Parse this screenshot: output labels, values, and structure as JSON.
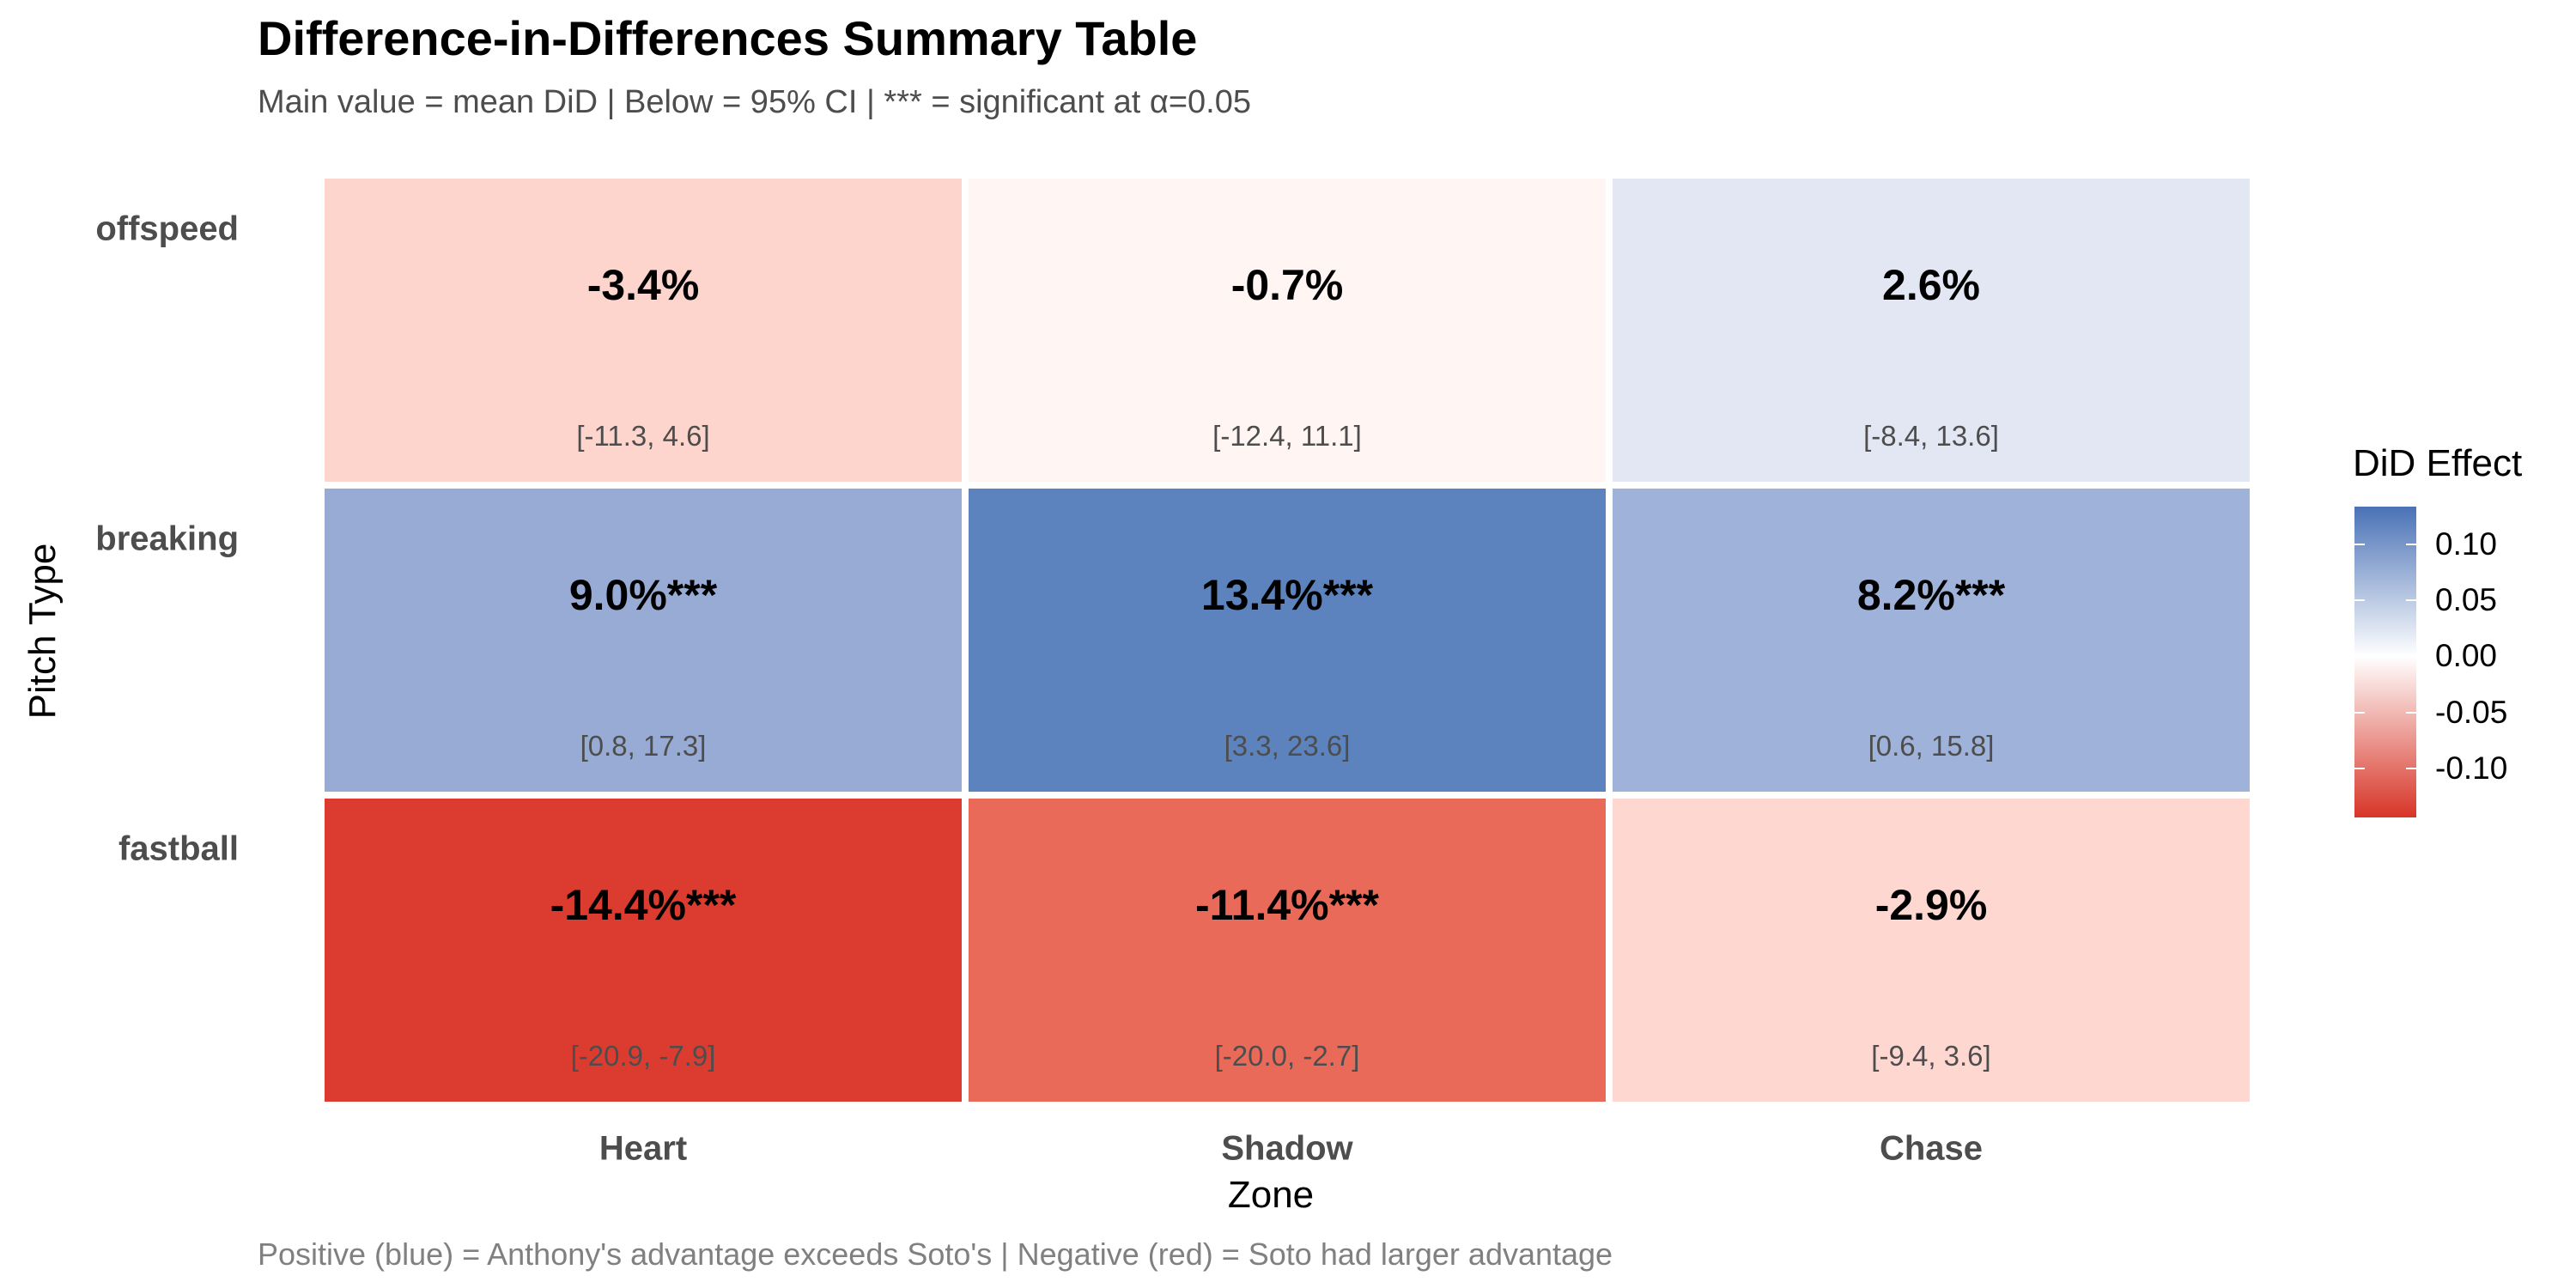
{
  "chart_data": {
    "type": "heatmap",
    "title": "Difference-in-Differences Summary Table",
    "subtitle": "Main value = mean DiD | Below = 95% CI | *** = significant at α=0.05",
    "caption": "Positive (blue) = Anthony's advantage exceeds Soto's | Negative (red) = Soto had larger advantage",
    "xlabel": "Zone",
    "ylabel": "Pitch Type",
    "x_categories": [
      "Heart",
      "Shadow",
      "Chase"
    ],
    "y_categories": [
      "offspeed",
      "breaking",
      "fastball"
    ],
    "legend": {
      "title": "DiD Effect",
      "placement": "right",
      "ticks": [
        {
          "value": 0.1,
          "label": "0.10"
        },
        {
          "value": 0.05,
          "label": "0.05"
        },
        {
          "value": 0.0,
          "label": "0.00"
        },
        {
          "value": -0.05,
          "label": "-0.05"
        },
        {
          "value": -0.1,
          "label": "-0.10"
        }
      ],
      "range": [
        -0.144,
        0.134
      ]
    },
    "colors": {
      "low": "#d73527",
      "mid": "#ffffff",
      "high": "#4a72b6"
    },
    "cells": [
      {
        "row": "offspeed",
        "zone": "Heart",
        "value": -0.034,
        "label": "-3.4%",
        "ci": "[-11.3, 4.6]",
        "color": "#fed5cd"
      },
      {
        "row": "offspeed",
        "zone": "Shadow",
        "value": -0.007,
        "label": "-0.7%",
        "ci": "[-12.4, 11.1]",
        "color": "#fff5f3"
      },
      {
        "row": "offspeed",
        "zone": "Chase",
        "value": 0.026,
        "label": "2.6%",
        "ci": "[-8.4, 13.6]",
        "color": "#e3e7f3"
      },
      {
        "row": "breaking",
        "zone": "Heart",
        "value": 0.09,
        "label": "9.0%***",
        "ci": "[0.8, 17.3]",
        "color": "#97abd5"
      },
      {
        "row": "breaking",
        "zone": "Shadow",
        "value": 0.134,
        "label": "13.4%***",
        "ci": "[3.3, 23.6]",
        "color": "#5c83bd"
      },
      {
        "row": "breaking",
        "zone": "Chase",
        "value": 0.082,
        "label": "8.2%***",
        "ci": "[0.6, 15.8]",
        "color": "#9fb2d9"
      },
      {
        "row": "fastball",
        "zone": "Heart",
        "value": -0.144,
        "label": "-14.4%***",
        "ci": "[-20.9, -7.9]",
        "color": "#dc3c30"
      },
      {
        "row": "fastball",
        "zone": "Shadow",
        "value": -0.114,
        "label": "-11.4%***",
        "ci": "[-20.0, -2.7]",
        "color": "#ea6a59"
      },
      {
        "row": "fastball",
        "zone": "Chase",
        "value": -0.029,
        "label": "-2.9%",
        "ci": "[-9.4, 3.6]",
        "color": "#fed8d0"
      }
    ]
  }
}
